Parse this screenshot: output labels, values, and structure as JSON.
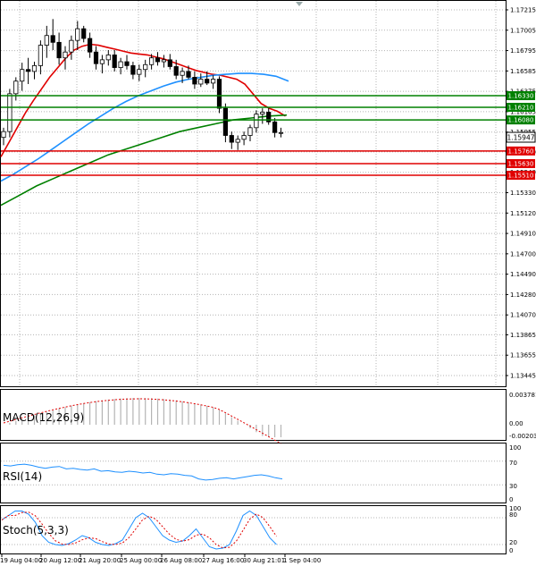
{
  "main_panel": {
    "price_labels": [
      "1.17215",
      "1.17005",
      "1.16795",
      "1.16585",
      "1.16375",
      "1.16165",
      "1.15955",
      "1.15750",
      "1.15540",
      "1.15330",
      "1.15120",
      "1.14910",
      "1.14700",
      "1.14490",
      "1.14280",
      "1.14070",
      "1.13865",
      "1.13655",
      "1.13445"
    ],
    "levels": [
      {
        "value": "1.16330",
        "color": "#008000"
      },
      {
        "value": "1.16210",
        "color": "#008000"
      },
      {
        "value": "1.16080",
        "color": "#008000"
      },
      {
        "value": "1.15760",
        "color": "#e00000"
      },
      {
        "value": "1.15630",
        "color": "#e00000"
      },
      {
        "value": "1.15510",
        "color": "#e00000"
      }
    ],
    "current_price": "1.15947",
    "series_colors": {
      "sma_fast": "#e00000",
      "sma_mid": "#1e90ff",
      "sma_slow": "#008000",
      "candle": "#000000"
    }
  },
  "macd_panel": {
    "label": "MACD(12,26,9)",
    "scale": [
      "0.003781",
      "0.00",
      "-0.002031"
    ]
  },
  "rsi_panel": {
    "label": "RSI(14)",
    "scale": [
      "100",
      "70",
      "30",
      "0"
    ]
  },
  "stoch_panel": {
    "label": "Stoch(5,3,3)",
    "scale": [
      "100",
      "80",
      "20",
      "0"
    ]
  },
  "time_axis": [
    "19 Aug 04:00",
    "20 Aug 12:00",
    "21 Aug 20:00",
    "25 Aug 00:00",
    "26 Aug 08:00",
    "27 Aug 16:00",
    "30 Aug 21:01",
    "1 Sep 04:00"
  ]
}
